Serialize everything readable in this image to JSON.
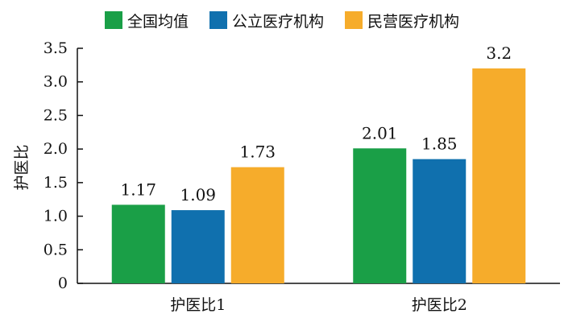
{
  "chart_data": {
    "type": "bar",
    "title": "",
    "xlabel": "",
    "ylabel": "护医比",
    "categories": [
      "护医比1",
      "护医比2"
    ],
    "series": [
      {
        "name": "全国均值",
        "values": [
          1.17,
          2.01
        ],
        "labels": [
          "1.17",
          "2.01"
        ],
        "color": "#1a9f47"
      },
      {
        "name": "公立医疗机构",
        "values": [
          1.09,
          1.85
        ],
        "labels": [
          "1.09",
          "1.85"
        ],
        "color": "#1070ae"
      },
      {
        "name": "民营医疗机构",
        "values": [
          1.73,
          3.2
        ],
        "labels": [
          "1.73",
          "3.2"
        ],
        "color": "#f6ac2b"
      }
    ],
    "ylim": [
      0,
      3.5
    ],
    "yticks": [
      "0",
      "0.5",
      "1.0",
      "1.5",
      "2.0",
      "2.5",
      "3.0",
      "3.5"
    ],
    "grid": false,
    "legend_position": "top-center"
  }
}
